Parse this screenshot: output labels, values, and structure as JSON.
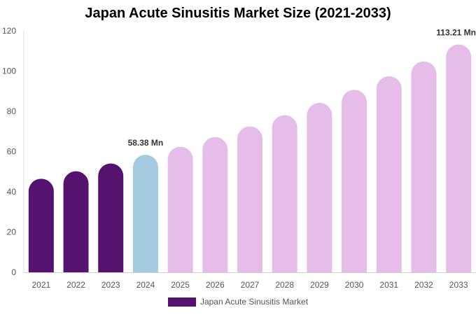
{
  "chart_data": {
    "type": "bar",
    "title": "Japan Acute Sinusitis Market Size (2021-2033)",
    "categories": [
      "2021",
      "2022",
      "2023",
      "2024",
      "2025",
      "2026",
      "2027",
      "2028",
      "2029",
      "2030",
      "2031",
      "2032",
      "2033"
    ],
    "series": [
      {
        "name": "Japan Acute Sinusitis Market",
        "values": [
          46.5,
          50.2,
          54.1,
          58.38,
          62.4,
          67.2,
          72.5,
          78.1,
          84.2,
          90.7,
          97.4,
          104.8,
          113.21
        ]
      }
    ],
    "segments": {
      "historical": "#55126f",
      "current": "#a3cadf",
      "forecast": "#e6bde8"
    },
    "data_labels": {
      "3": "58.38 Mn",
      "12": "113.21 Mn"
    },
    "ylim": [
      0,
      120
    ],
    "yticks": [
      0,
      20,
      40,
      60,
      80,
      100,
      120
    ],
    "xlabel": "",
    "ylabel": "",
    "grid": false,
    "legend_position": "bottom"
  }
}
